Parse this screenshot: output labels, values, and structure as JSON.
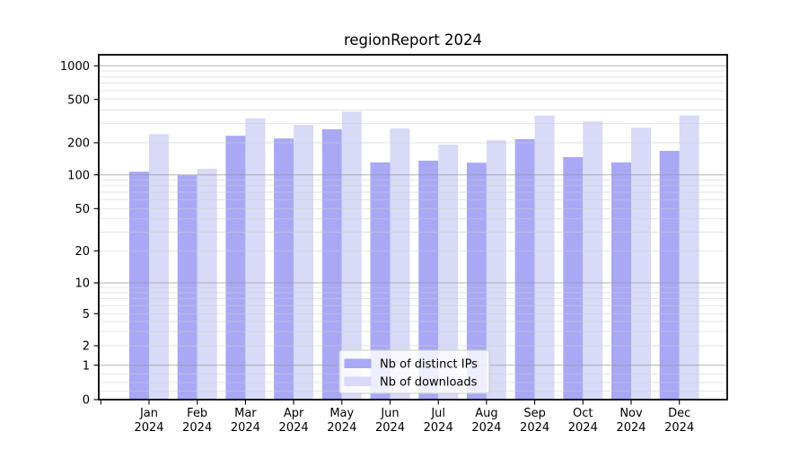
{
  "chart_data": {
    "type": "bar",
    "title": "regionReport 2024",
    "categories": [
      "Jan",
      "Feb",
      "Mar",
      "Apr",
      "May",
      "Jun",
      "Jul",
      "Aug",
      "Sep",
      "Oct",
      "Nov",
      "Dec"
    ],
    "year": "2024",
    "series": [
      {
        "name": "Nb of distinct IPs",
        "color": "#a8a8f5",
        "values": [
          107,
          99,
          232,
          219,
          266,
          131,
          136,
          130,
          216,
          147,
          131,
          168
        ]
      },
      {
        "name": "Nb of downloads",
        "color": "#d9d9f8",
        "values": [
          240,
          114,
          335,
          291,
          386,
          270,
          192,
          211,
          356,
          315,
          275,
          357
        ]
      }
    ],
    "yscale": "symlog",
    "yticks": [
      0,
      1,
      2,
      5,
      10,
      20,
      50,
      100,
      200,
      500,
      1000
    ],
    "ylim": [
      0,
      1150
    ],
    "grid": true,
    "legend_position": "lower center"
  },
  "colors": {
    "background": "#ffffff",
    "axis": "#000000",
    "grid_major": "#999999",
    "grid_minor": "#cccccc",
    "legend_border": "#cccccc",
    "legend_background": "#ffffff",
    "text": "#000000"
  }
}
